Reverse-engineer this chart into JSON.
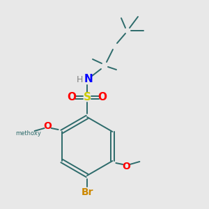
{
  "bg_color": "#e8e8e8",
  "bond_color": "#2d6b6b",
  "atom_colors": {
    "S": "#cccc00",
    "O": "#ff0000",
    "N": "#0000ff",
    "H": "#808080",
    "Br": "#cc8800",
    "C": "#2d6b6b"
  },
  "lw": 1.4
}
